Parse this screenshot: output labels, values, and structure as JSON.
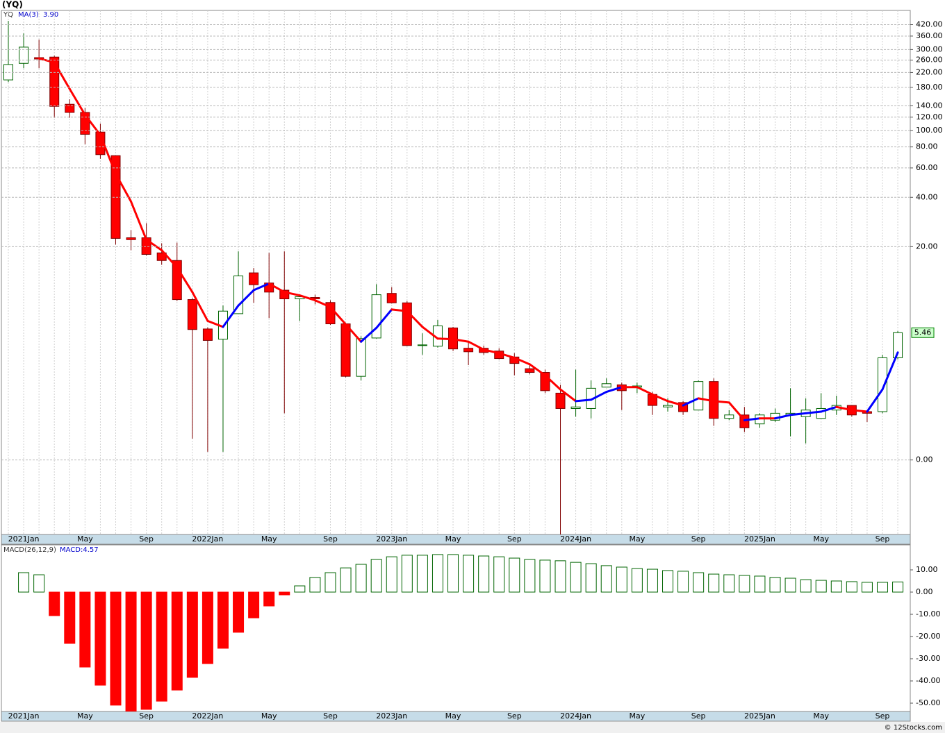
{
  "chart_data": [
    {
      "type": "candlestick",
      "title": "(YQ)",
      "name": "YQ",
      "categories": [
        null,
        "2021Jan",
        null,
        null,
        null,
        "May",
        null,
        null,
        null,
        "Sep",
        null,
        null,
        null,
        "2022Jan",
        null,
        null,
        null,
        "May",
        null,
        null,
        null,
        "Sep",
        null,
        null,
        null,
        "2023Jan",
        null,
        null,
        null,
        "May",
        null,
        null,
        null,
        "Sep",
        null,
        null,
        null,
        "2024Jan",
        null,
        null,
        null,
        "May",
        null,
        null,
        null,
        "Sep",
        null,
        null,
        null,
        "2025Jan",
        null,
        null,
        null,
        "May",
        null,
        null,
        null,
        "Sep",
        null
      ],
      "open": [
        199,
        249,
        269,
        271,
        143,
        128,
        98,
        71,
        22.7,
        22.7,
        18.3,
        16.4,
        9.2,
        5.8,
        4.9,
        7.4,
        13.7,
        11.8,
        10.6,
        9.3,
        9.5,
        8.8,
        6.3,
        2.5,
        5.0,
        10.1,
        8.75,
        4.4,
        4.35,
        5.9,
        4.2,
        4.2,
        4.0,
        3.6,
        2.9,
        2.7,
        1.75,
        1.2,
        1.2,
        2.0,
        2.1,
        2.0,
        1.7,
        1.25,
        1.4,
        1.15,
        2.25,
        0.9,
        1.0,
        0.75,
        0.85,
        1.0,
        0.95,
        0.9,
        1.15,
        1.3,
        1.1,
        1.1,
        3.55
      ],
      "high": [
        442,
        373,
        343,
        276,
        153,
        136,
        110,
        71,
        25.3,
        27.9,
        21.0,
        21.2,
        9.4,
        5.95,
        8.4,
        18.7,
        14.7,
        18.3,
        18.7,
        9.8,
        9.9,
        9.1,
        6.4,
        5.15,
        11.6,
        11.1,
        9.0,
        5.4,
        6.7,
        6.0,
        4.7,
        4.4,
        4.2,
        3.85,
        3.1,
        2.85,
        2.1,
        2.85,
        2.3,
        2.4,
        2.2,
        2.2,
        1.8,
        1.55,
        1.45,
        2.3,
        2.4,
        1.15,
        1.25,
        1.05,
        1.2,
        1.95,
        1.55,
        1.75,
        1.65,
        1.3,
        1.15,
        3.75,
        5.6
      ],
      "low": [
        193,
        233,
        233,
        119,
        119,
        83,
        68,
        20.6,
        19.0,
        17.6,
        15.4,
        9.0,
        0.4,
        0.14,
        0.14,
        7.4,
        8.75,
        6.9,
        1.05,
        6.6,
        8.55,
        6.2,
        2.45,
        2.3,
        4.95,
        8.65,
        4.35,
        3.75,
        4.25,
        4.0,
        3.1,
        3.75,
        3.45,
        2.55,
        2.6,
        1.75,
        -0.76,
        0.95,
        0.9,
        2.0,
        1.15,
        1.75,
        1.0,
        1.1,
        1.0,
        1.15,
        0.7,
        0.85,
        0.55,
        0.65,
        0.8,
        0.45,
        0.3,
        0.9,
        1.0,
        0.95,
        0.8,
        1.05,
        3.45
      ],
      "close": [
        245,
        310,
        264,
        139,
        128,
        95,
        72,
        22.5,
        22.1,
        17.9,
        16.4,
        9.2,
        5.75,
        4.8,
        7.7,
        13.1,
        11.5,
        10.3,
        9.3,
        9.6,
        9.3,
        6.3,
        2.5,
        4.95,
        9.9,
        8.75,
        4.4,
        4.45,
        6.1,
        4.15,
        3.95,
        3.9,
        3.5,
        3.2,
        2.7,
        1.85,
        1.2,
        1.25,
        1.95,
        2.15,
        1.85,
        2.05,
        1.3,
        1.3,
        1.1,
        2.25,
        0.9,
        1.0,
        0.65,
        1.0,
        1.05,
        1.05,
        1.15,
        1.2,
        1.3,
        1.0,
        1.05,
        3.55,
        5.46
      ],
      "up_color": "#006400",
      "down_color": "#ff0000",
      "down_edge_color": "#800000",
      "overlay": {
        "type": "line",
        "name": "MA(3)",
        "values": [
          null,
          null,
          266,
          252,
          176,
          124,
          94,
          55.4,
          37.7,
          22.1,
          19.0,
          14.8,
          10.3,
          6.6,
          6.0,
          8.4,
          10.6,
          11.7,
          10.3,
          9.8,
          9.1,
          8.2,
          6.25,
          4.7,
          5.9,
          7.9,
          7.7,
          6.0,
          4.95,
          4.9,
          4.7,
          4.1,
          3.85,
          3.55,
          3.15,
          2.55,
          1.9,
          1.45,
          1.5,
          1.8,
          2.0,
          2.0,
          1.7,
          1.45,
          1.3,
          1.55,
          1.45,
          1.4,
          0.85,
          0.9,
          0.9,
          1.0,
          1.05,
          1.1,
          1.25,
          1.15,
          1.1,
          1.9,
          3.9
        ],
        "value_labels": [
          null,
          null,
          null,
          null,
          null,
          null,
          null,
          null,
          null,
          null,
          null,
          null,
          null,
          null,
          null,
          null,
          null,
          null,
          null,
          null,
          null,
          null,
          null,
          null,
          null,
          null,
          null,
          null,
          null,
          null,
          null,
          null,
          null,
          null,
          null,
          null,
          null,
          null,
          null,
          null,
          null,
          null,
          null,
          null,
          null,
          null,
          null,
          null,
          null,
          null,
          null,
          null,
          null,
          null,
          null,
          null,
          null,
          null,
          "3.90"
        ],
        "up_color": "#0000ff",
        "down_color": "#ff0000"
      },
      "scale": "log",
      "ylim": [
        -0.76,
        509
      ],
      "yticks": [
        {
          "value": 420,
          "label": "420.00"
        },
        {
          "value": 360,
          "label": "360.00"
        },
        {
          "value": 300,
          "label": "300.00"
        },
        {
          "value": 260,
          "label": "260.00"
        },
        {
          "value": 220,
          "label": "220.00"
        },
        {
          "value": 180,
          "label": "180.00"
        },
        {
          "value": 140,
          "label": "140.00"
        },
        {
          "value": 120,
          "label": "120.00"
        },
        {
          "value": 100,
          "label": "100.00"
        },
        {
          "value": 80,
          "label": "80.00"
        },
        {
          "value": 60,
          "label": "60.00"
        },
        {
          "value": 40,
          "label": "40.00"
        },
        {
          "value": 20,
          "label": "20.00"
        },
        {
          "value": 0,
          "label": "0.00"
        }
      ],
      "grid": true
    },
    {
      "type": "bar",
      "name": "MACD(26,12,9)",
      "values": [
        null,
        8.75,
        7.8,
        -10.6,
        -23.1,
        -33.75,
        -41.9,
        -50.9,
        -55,
        -52.8,
        -49.1,
        -44.1,
        -38.4,
        -32.2,
        -25.3,
        -18.1,
        -11.6,
        -6.25,
        -1.25,
        2.8,
        6.6,
        8.75,
        10.9,
        12.5,
        14.7,
        15.9,
        16.6,
        16.6,
        16.9,
        16.9,
        16.6,
        16.25,
        15.9,
        15.3,
        14.7,
        14.4,
        14.1,
        13.4,
        12.8,
        11.9,
        11.25,
        10.6,
        10.3,
        9.7,
        9.4,
        8.75,
        8.1,
        7.8,
        7.5,
        7.2,
        6.6,
        6.25,
        5.6,
        5.3,
        5.0,
        4.7,
        4.4,
        4.4,
        4.57
      ],
      "value_labels": [
        null,
        null,
        null,
        null,
        null,
        null,
        null,
        null,
        null,
        null,
        null,
        null,
        null,
        null,
        null,
        null,
        null,
        null,
        null,
        null,
        null,
        null,
        null,
        null,
        null,
        null,
        null,
        null,
        null,
        null,
        null,
        null,
        null,
        null,
        null,
        null,
        null,
        null,
        null,
        null,
        null,
        null,
        null,
        null,
        null,
        null,
        null,
        null,
        null,
        null,
        null,
        null,
        null,
        null,
        null,
        null,
        null,
        null,
        "MACD:4.57"
      ],
      "up_color": "#006400",
      "down_color": "#ff0000",
      "ylim": [
        -53.75,
        21.25
      ],
      "yticks": [
        {
          "value": 10,
          "label": "10.00"
        },
        {
          "value": 0,
          "label": "0.00"
        },
        {
          "value": -10,
          "label": "-10.00"
        },
        {
          "value": -20,
          "label": "-20.00"
        },
        {
          "value": -30,
          "label": "-30.00"
        },
        {
          "value": -40,
          "label": "-40.00"
        },
        {
          "value": -50,
          "label": "-50.00"
        }
      ]
    }
  ],
  "footer": "© 12Stocks.com"
}
